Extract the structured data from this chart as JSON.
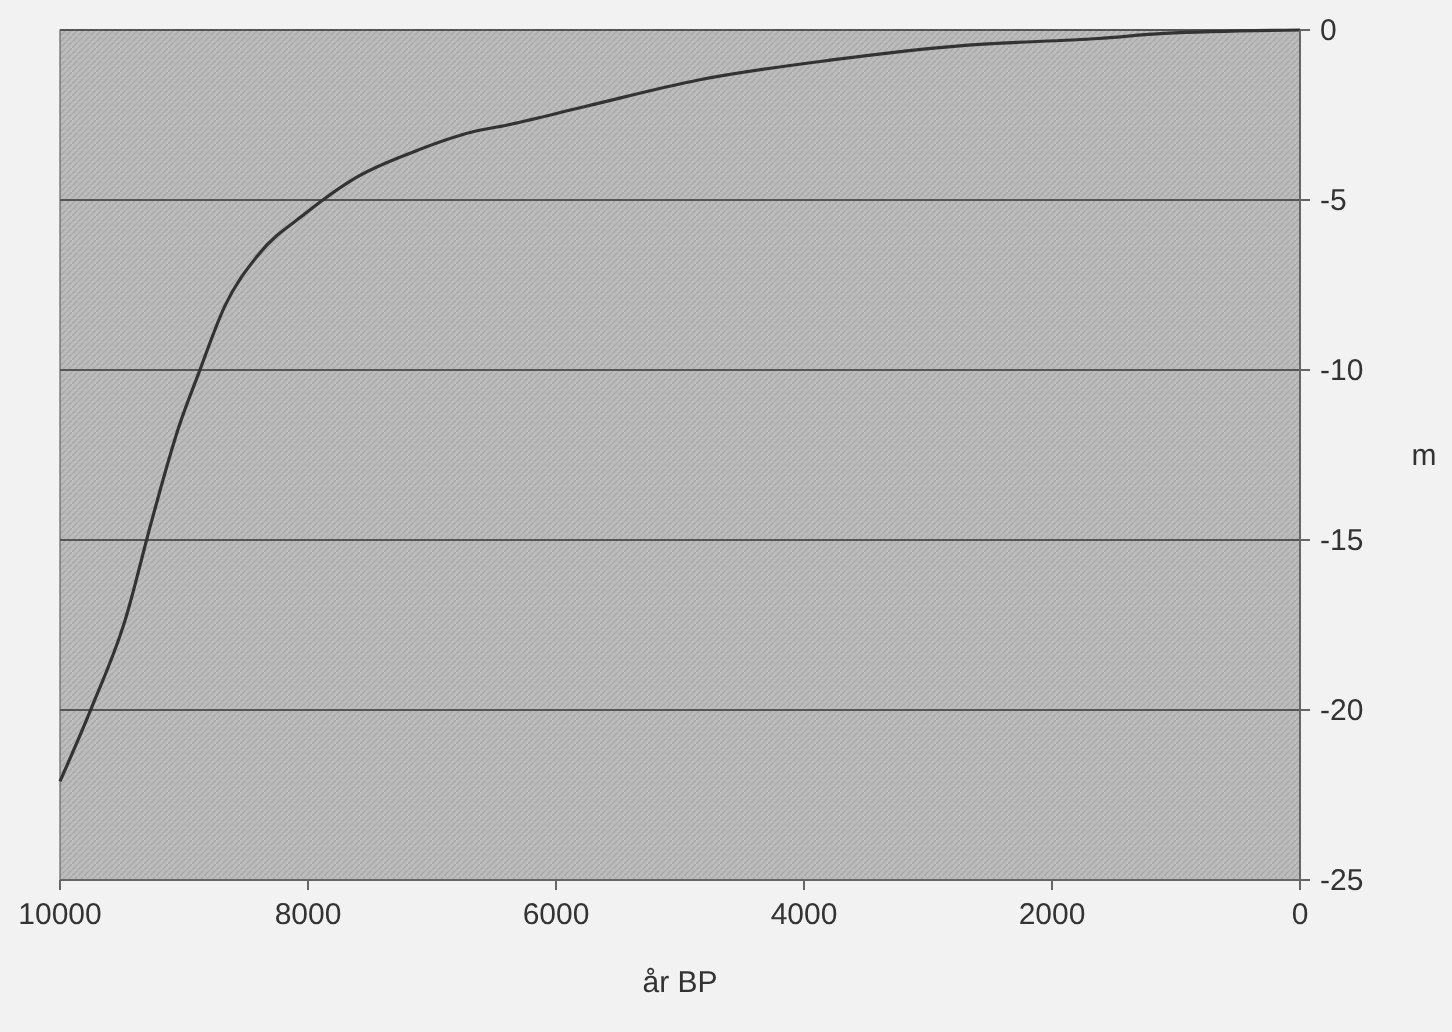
{
  "chart_data": {
    "type": "line",
    "xlabel": "år BP",
    "ylabel": "m",
    "x": [
      10000,
      9742,
      9474,
      9258,
      9044,
      8882,
      8668,
      8398,
      8022,
      7592,
      7161,
      6677,
      6400,
      5765,
      4850,
      3774,
      2700,
      1624,
      1092,
      0
    ],
    "series": [
      {
        "color": "#333333",
        "values": [
          -22.1,
          -19.9,
          -17.35,
          -14.4,
          -11.7,
          -10.1,
          -8.1,
          -6.6,
          -5.4,
          -4.3,
          -3.6,
          -3.0,
          -2.8,
          -2.25,
          -1.47,
          -0.88,
          -0.45,
          -0.25,
          -0.1,
          0
        ]
      }
    ],
    "xlim": [
      10000,
      0
    ],
    "xticks": [
      10000,
      8000,
      6000,
      4000,
      2000,
      0
    ],
    "ylim": [
      -25,
      0
    ],
    "yticks": [
      0,
      -5,
      -10,
      -15,
      -20,
      -25
    ],
    "grid": "y",
    "marker": "none",
    "line_style": "solid"
  }
}
